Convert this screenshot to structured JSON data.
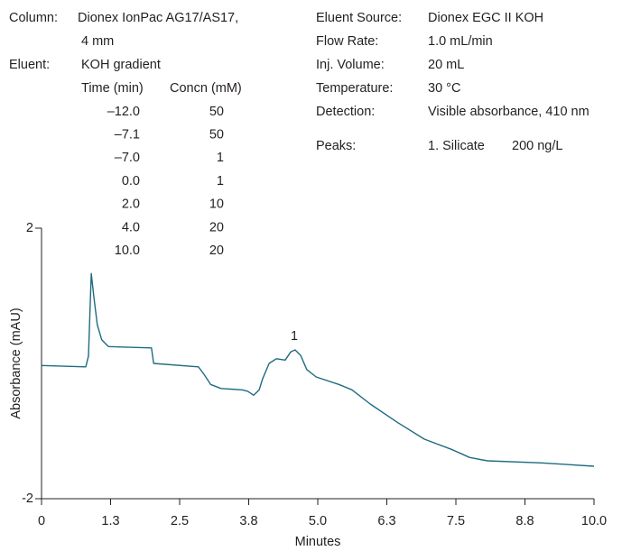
{
  "conditions": {
    "column_label": "Column:",
    "column_value": "Dionex IonPac AG17/AS17,",
    "column_value_2": "4 mm",
    "eluent_label": "Eluent:",
    "eluent_value": "KOH gradient",
    "gradient_header": [
      "Time (min)",
      "Concn (mM)"
    ],
    "gradient_rows": [
      [
        "–12.0",
        "50"
      ],
      [
        "–7.1",
        "50"
      ],
      [
        "–7.0",
        "1"
      ],
      [
        "0.0",
        "1"
      ],
      [
        "2.0",
        "10"
      ],
      [
        "4.0",
        "20"
      ],
      [
        "10.0",
        "20"
      ]
    ],
    "right": [
      [
        "Eluent Source:",
        "Dionex EGC II KOH"
      ],
      [
        "Flow Rate:",
        "1.0 mL/min"
      ],
      [
        "Inj. Volume:",
        "20 mL"
      ],
      [
        "Temperature:",
        "30 °C"
      ],
      [
        "Detection:",
        "Visible absorbance, 410 nm"
      ]
    ],
    "peaks_label": "Peaks:",
    "peaks": [
      [
        "1. Silicate",
        "200 ng/L"
      ]
    ]
  },
  "chart_data": {
    "type": "line",
    "xlabel": "Minutes",
    "ylabel": "Absorbance (mAU)",
    "peak_annotation": "1",
    "xlim": [
      0,
      10
    ],
    "ylim": [
      -2,
      2
    ],
    "xticks": [
      0,
      {
        "value": 1.25,
        "label": "1.3"
      },
      2.5,
      {
        "value": 3.75,
        "label": "3.8"
      },
      {
        "value": 5,
        "label": "5.0"
      },
      {
        "value": 6.25,
        "label": "6.3"
      },
      7.5,
      {
        "value": 8.75,
        "label": "8.8"
      },
      {
        "value": 10,
        "label": "10.0"
      }
    ],
    "yticks": [
      -2,
      2
    ],
    "x": [
      0,
      0.8,
      0.85,
      0.9,
      0.95,
      1.01,
      1.09,
      1.21,
      1.99,
      2.03,
      2.84,
      2.94,
      3.06,
      3.25,
      3.63,
      3.73,
      3.84,
      3.94,
      4.0,
      4.12,
      4.25,
      4.41,
      4.51,
      4.59,
      4.69,
      4.8,
      4.97,
      5.38,
      5.62,
      5.95,
      6.44,
      6.93,
      7.42,
      7.75,
      8.07,
      9.05,
      10.0
    ],
    "series": [
      {
        "color": "#1f6b80",
        "values": [
          -0.03,
          -0.05,
          0.11,
          1.33,
          0.97,
          0.57,
          0.35,
          0.25,
          0.23,
          0.0,
          -0.05,
          -0.16,
          -0.31,
          -0.37,
          -0.39,
          -0.41,
          -0.47,
          -0.39,
          -0.23,
          0.0,
          0.07,
          0.05,
          0.17,
          0.2,
          0.12,
          -0.09,
          -0.2,
          -0.31,
          -0.39,
          -0.6,
          -0.87,
          -1.12,
          -1.27,
          -1.39,
          -1.44,
          -1.47,
          -1.52
        ]
      }
    ]
  }
}
